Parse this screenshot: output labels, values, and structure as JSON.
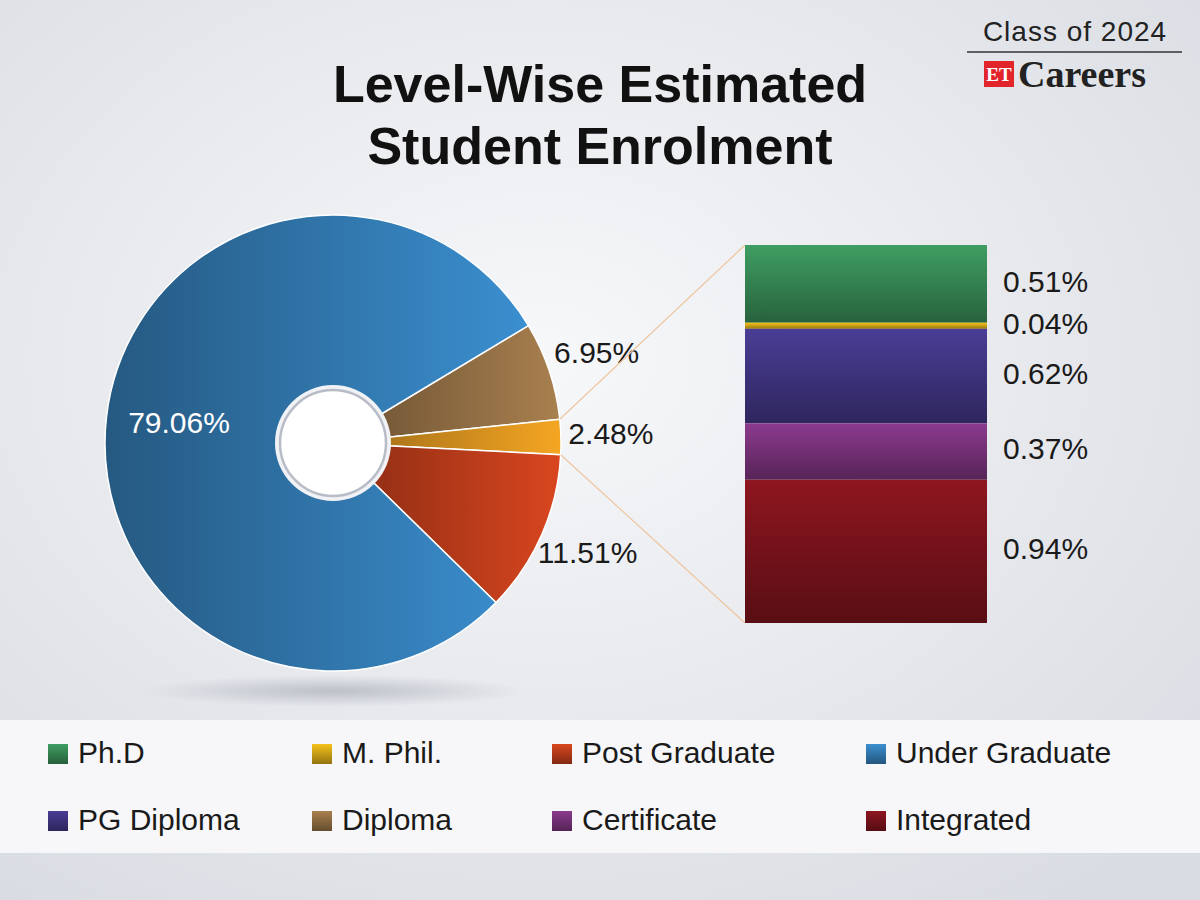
{
  "chart_data": {
    "type": "pie",
    "title": "Level-Wise Estimated\nStudent Enrolment",
    "categories": [
      "Diploma",
      null,
      "Post Graduate",
      "Under Graduate"
    ],
    "values": [
      6.95,
      2.48,
      11.51,
      79.06
    ],
    "value_labels": [
      "6.95%",
      "2.48%",
      "11.51%",
      "79.06%"
    ],
    "colors": [
      "#a9804f",
      "#f5a623",
      "#d9461f",
      "#3b8fd0"
    ],
    "data_labels": true,
    "legend": "bottom",
    "breakdown": {
      "stacked": true,
      "categories": [
        "Ph.D",
        "M. Phil.",
        "PG Diploma",
        "Certificate",
        "Integrated"
      ],
      "values": [
        0.51,
        0.04,
        0.62,
        0.37,
        0.94
      ],
      "value_labels": [
        "0.51%",
        "0.04%",
        "0.62%",
        "0.37%",
        "0.94%"
      ],
      "colors": [
        "#3f9e62",
        "#f5c21b",
        "#4a3d96",
        "#8c3a8e",
        "#8e1620"
      ],
      "data_labels": true
    }
  },
  "branding": {
    "edition": "Class of 2024",
    "logo_mark": "ET",
    "logo_text": "Careers"
  }
}
